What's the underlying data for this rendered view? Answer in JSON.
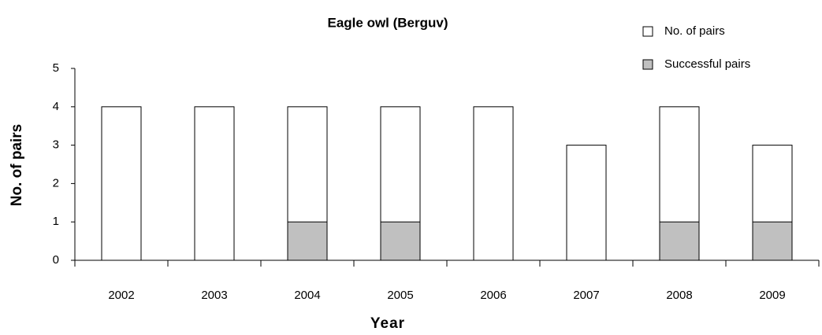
{
  "chart_data": {
    "type": "bar",
    "overlap": true,
    "title": "Eagle owl (Berguv)",
    "x_label": "Year",
    "y_label": "No. of pairs",
    "categories": [
      "2002",
      "2003",
      "2004",
      "2005",
      "2006",
      "2007",
      "2008",
      "2009"
    ],
    "series": [
      {
        "name": "No. of pairs",
        "color": "#ffffff",
        "values": [
          4,
          4,
          4,
          4,
          4,
          3,
          4,
          3
        ]
      },
      {
        "name": "Successful pairs",
        "color": "#c0c0c0",
        "values": [
          0,
          0,
          1,
          1,
          0,
          0,
          1,
          1
        ]
      }
    ],
    "ylim": [
      0,
      5
    ],
    "yticks": [
      0,
      1,
      2,
      3,
      4,
      5
    ],
    "legend": "upper right"
  }
}
